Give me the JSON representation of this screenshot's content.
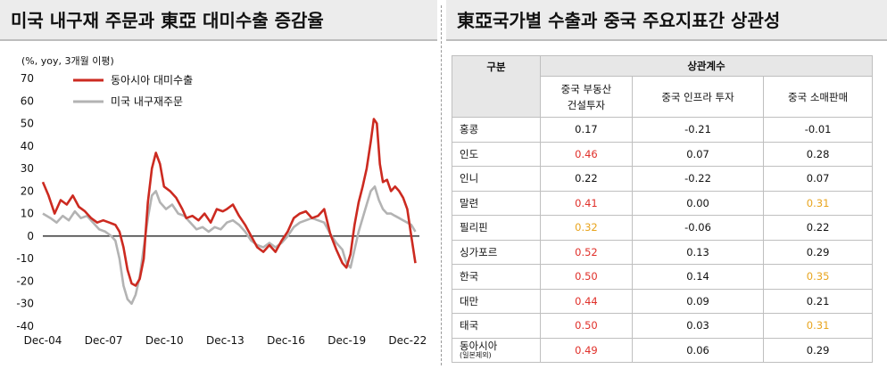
{
  "left_panel": {
    "title": "미국 내구재 주문과 東亞 대미수출 증감율"
  },
  "right_panel": {
    "title": "東亞국가별 수출과 중국 주요지표간 상관성"
  },
  "chart_data": {
    "type": "line",
    "unit_label": "(%, yoy, 3개월 이평)",
    "x_ticks": [
      "Dec-04",
      "Dec-07",
      "Dec-10",
      "Dec-13",
      "Dec-16",
      "Dec-19",
      "Dec-22"
    ],
    "y_ticks": [
      -40,
      -30,
      -20,
      -10,
      0,
      10,
      20,
      30,
      40,
      50,
      60,
      70
    ],
    "ylim": [
      -40,
      70
    ],
    "xlim": [
      2004.92,
      2023.5
    ],
    "legend_position": "top-left",
    "series": [
      {
        "name": "동아시아 대미수출",
        "color": "#cc2a20",
        "points": [
          [
            2004.92,
            24
          ],
          [
            2005.2,
            18
          ],
          [
            2005.5,
            10
          ],
          [
            2005.8,
            16
          ],
          [
            2006.1,
            14
          ],
          [
            2006.4,
            18
          ],
          [
            2006.7,
            13
          ],
          [
            2007.0,
            11
          ],
          [
            2007.3,
            8
          ],
          [
            2007.6,
            6
          ],
          [
            2007.9,
            7
          ],
          [
            2008.2,
            6
          ],
          [
            2008.5,
            5
          ],
          [
            2008.7,
            2
          ],
          [
            2008.9,
            -5
          ],
          [
            2009.1,
            -15
          ],
          [
            2009.3,
            -21
          ],
          [
            2009.5,
            -22
          ],
          [
            2009.7,
            -19
          ],
          [
            2009.9,
            -10
          ],
          [
            2010.1,
            15
          ],
          [
            2010.3,
            30
          ],
          [
            2010.5,
            37
          ],
          [
            2010.7,
            32
          ],
          [
            2010.9,
            22
          ],
          [
            2011.2,
            20
          ],
          [
            2011.5,
            17
          ],
          [
            2011.8,
            12
          ],
          [
            2012.0,
            8
          ],
          [
            2012.3,
            9
          ],
          [
            2012.6,
            7
          ],
          [
            2012.9,
            10
          ],
          [
            2013.2,
            6
          ],
          [
            2013.5,
            12
          ],
          [
            2013.8,
            11
          ],
          [
            2014.0,
            12
          ],
          [
            2014.3,
            14
          ],
          [
            2014.6,
            9
          ],
          [
            2014.9,
            5
          ],
          [
            2015.2,
            0
          ],
          [
            2015.5,
            -5
          ],
          [
            2015.8,
            -7
          ],
          [
            2016.1,
            -4
          ],
          [
            2016.4,
            -7
          ],
          [
            2016.7,
            -2
          ],
          [
            2017.0,
            2
          ],
          [
            2017.3,
            8
          ],
          [
            2017.6,
            10
          ],
          [
            2017.9,
            11
          ],
          [
            2018.2,
            8
          ],
          [
            2018.5,
            9
          ],
          [
            2018.8,
            12
          ],
          [
            2019.1,
            1
          ],
          [
            2019.4,
            -6
          ],
          [
            2019.7,
            -12
          ],
          [
            2019.9,
            -14
          ],
          [
            2020.1,
            -8
          ],
          [
            2020.3,
            5
          ],
          [
            2020.5,
            15
          ],
          [
            2020.7,
            22
          ],
          [
            2020.9,
            30
          ],
          [
            2021.1,
            42
          ],
          [
            2021.25,
            52
          ],
          [
            2021.4,
            50
          ],
          [
            2021.55,
            32
          ],
          [
            2021.7,
            24
          ],
          [
            2021.9,
            25
          ],
          [
            2022.1,
            20
          ],
          [
            2022.3,
            22
          ],
          [
            2022.5,
            20
          ],
          [
            2022.7,
            17
          ],
          [
            2022.9,
            12
          ],
          [
            2023.1,
            0
          ],
          [
            2023.3,
            -12
          ]
        ]
      },
      {
        "name": "미국 내구재주문",
        "color": "#b3b3b3",
        "points": [
          [
            2004.92,
            10
          ],
          [
            2005.3,
            8
          ],
          [
            2005.6,
            6
          ],
          [
            2005.9,
            9
          ],
          [
            2006.2,
            7
          ],
          [
            2006.5,
            11
          ],
          [
            2006.8,
            8
          ],
          [
            2007.1,
            9
          ],
          [
            2007.4,
            6
          ],
          [
            2007.7,
            3
          ],
          [
            2008.0,
            2
          ],
          [
            2008.3,
            0
          ],
          [
            2008.5,
            -2
          ],
          [
            2008.7,
            -10
          ],
          [
            2008.9,
            -22
          ],
          [
            2009.1,
            -28
          ],
          [
            2009.3,
            -30
          ],
          [
            2009.5,
            -26
          ],
          [
            2009.7,
            -18
          ],
          [
            2009.9,
            -5
          ],
          [
            2010.1,
            8
          ],
          [
            2010.3,
            18
          ],
          [
            2010.5,
            20
          ],
          [
            2010.7,
            15
          ],
          [
            2011.0,
            12
          ],
          [
            2011.3,
            14
          ],
          [
            2011.6,
            10
          ],
          [
            2011.9,
            9
          ],
          [
            2012.2,
            6
          ],
          [
            2012.5,
            3
          ],
          [
            2012.8,
            4
          ],
          [
            2013.1,
            2
          ],
          [
            2013.4,
            4
          ],
          [
            2013.7,
            3
          ],
          [
            2014.0,
            6
          ],
          [
            2014.3,
            7
          ],
          [
            2014.6,
            5
          ],
          [
            2014.9,
            2
          ],
          [
            2015.2,
            -2
          ],
          [
            2015.5,
            -4
          ],
          [
            2015.8,
            -5
          ],
          [
            2016.1,
            -3
          ],
          [
            2016.4,
            -5
          ],
          [
            2016.7,
            -3
          ],
          [
            2017.0,
            0
          ],
          [
            2017.3,
            4
          ],
          [
            2017.6,
            6
          ],
          [
            2017.9,
            7
          ],
          [
            2018.2,
            8
          ],
          [
            2018.5,
            7
          ],
          [
            2018.8,
            6
          ],
          [
            2019.1,
            1
          ],
          [
            2019.4,
            -3
          ],
          [
            2019.7,
            -6
          ],
          [
            2019.9,
            -12
          ],
          [
            2020.1,
            -14
          ],
          [
            2020.3,
            -6
          ],
          [
            2020.5,
            2
          ],
          [
            2020.7,
            8
          ],
          [
            2020.9,
            14
          ],
          [
            2021.1,
            20
          ],
          [
            2021.3,
            22
          ],
          [
            2021.5,
            16
          ],
          [
            2021.7,
            12
          ],
          [
            2021.9,
            10
          ],
          [
            2022.1,
            10
          ],
          [
            2022.3,
            9
          ],
          [
            2022.5,
            8
          ],
          [
            2022.7,
            7
          ],
          [
            2022.9,
            6
          ],
          [
            2023.1,
            5
          ],
          [
            2023.3,
            2
          ]
        ]
      }
    ]
  },
  "table": {
    "col_group_header": "구분",
    "corr_header": "상관계수",
    "sub_headers": [
      "중국 부동산\n건설투자",
      "중국 인프라 투자",
      "중국 소매판매"
    ],
    "rows": [
      {
        "label": "홍콩",
        "values": [
          "0.17",
          "-0.21",
          "-0.01"
        ],
        "colors": [
          "",
          "",
          ""
        ]
      },
      {
        "label": "인도",
        "values": [
          "0.46",
          "0.07",
          "0.28"
        ],
        "colors": [
          "red",
          "",
          ""
        ]
      },
      {
        "label": "인니",
        "values": [
          "0.22",
          "-0.22",
          "0.07"
        ],
        "colors": [
          "",
          "",
          ""
        ]
      },
      {
        "label": "말련",
        "values": [
          "0.41",
          "0.00",
          "0.31"
        ],
        "colors": [
          "red",
          "",
          "yellow"
        ]
      },
      {
        "label": "필리핀",
        "values": [
          "0.32",
          "-0.06",
          "0.22"
        ],
        "colors": [
          "yellow",
          "",
          ""
        ]
      },
      {
        "label": "싱가포르",
        "values": [
          "0.52",
          "0.13",
          "0.29"
        ],
        "colors": [
          "red",
          "",
          ""
        ]
      },
      {
        "label": "한국",
        "values": [
          "0.50",
          "0.14",
          "0.35"
        ],
        "colors": [
          "red",
          "",
          "yellow"
        ]
      },
      {
        "label": "대만",
        "values": [
          "0.44",
          "0.09",
          "0.21"
        ],
        "colors": [
          "red",
          "",
          ""
        ]
      },
      {
        "label": "태국",
        "values": [
          "0.50",
          "0.03",
          "0.31"
        ],
        "colors": [
          "red",
          "",
          "yellow"
        ]
      },
      {
        "label": "동아시아",
        "note": "(일본제외)",
        "values": [
          "0.49",
          "0.06",
          "0.29"
        ],
        "colors": [
          "red",
          "",
          ""
        ]
      }
    ]
  }
}
